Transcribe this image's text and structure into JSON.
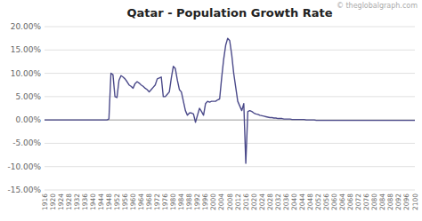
{
  "chart_data": {
    "type": "line",
    "title": "Qatar - Population Growth Rate",
    "annotations": [
      "© theglobalgraph.com"
    ],
    "color": "#4B4A8A",
    "grid": true,
    "xlim": [
      1916,
      2100
    ],
    "xticks": [
      1916,
      1920,
      1924,
      1928,
      1932,
      1936,
      1940,
      1944,
      1948,
      1952,
      1956,
      1960,
      1964,
      1968,
      1972,
      1976,
      1980,
      1984,
      1988,
      1992,
      1996,
      2000,
      2004,
      2008,
      2012,
      2016,
      2020,
      2024,
      2028,
      2032,
      2036,
      2040,
      2044,
      2048,
      2052,
      2056,
      2060,
      2064,
      2068,
      2072,
      2076,
      2080,
      2084,
      2088,
      2092,
      2096,
      2100
    ],
    "ylim": [
      -0.15,
      0.2
    ],
    "yticks": [
      {
        "value": -0.15,
        "label": "-15.00%"
      },
      {
        "value": -0.1,
        "label": "-10.00%"
      },
      {
        "value": -0.05,
        "label": "-5.00%"
      },
      {
        "value": 0,
        "label": "0.00%"
      },
      {
        "value": 0.05,
        "label": "5.00%"
      },
      {
        "value": 0.1,
        "label": "10.00%"
      },
      {
        "value": 0.15,
        "label": "15.00%"
      },
      {
        "value": 0.2,
        "label": "20.00%"
      }
    ],
    "x": [
      1916,
      1917,
      1918,
      1919,
      1920,
      1921,
      1922,
      1923,
      1924,
      1925,
      1926,
      1927,
      1928,
      1929,
      1930,
      1931,
      1932,
      1933,
      1934,
      1935,
      1936,
      1937,
      1938,
      1939,
      1940,
      1941,
      1942,
      1943,
      1944,
      1945,
      1946,
      1947,
      1948,
      1949,
      1950,
      1951,
      1952,
      1953,
      1954,
      1955,
      1956,
      1957,
      1958,
      1959,
      1960,
      1961,
      1962,
      1963,
      1964,
      1965,
      1966,
      1967,
      1968,
      1969,
      1970,
      1971,
      1972,
      1973,
      1974,
      1975,
      1976,
      1977,
      1978,
      1979,
      1980,
      1981,
      1982,
      1983,
      1984,
      1985,
      1986,
      1987,
      1988,
      1989,
      1990,
      1991,
      1992,
      1993,
      1994,
      1995,
      1996,
      1997,
      1998,
      1999,
      2000,
      2001,
      2002,
      2003,
      2004,
      2005,
      2006,
      2007,
      2008,
      2009,
      2010,
      2011,
      2012,
      2013,
      2014,
      2015,
      2016,
      2017,
      2018,
      2019,
      2020,
      2021,
      2022,
      2023,
      2024,
      2025,
      2026,
      2027,
      2028,
      2029,
      2030,
      2031,
      2032,
      2033,
      2034,
      2035,
      2036,
      2037,
      2038,
      2039,
      2040,
      2041,
      2042,
      2043,
      2044,
      2045,
      2046,
      2047,
      2048,
      2049,
      2050,
      2051,
      2052,
      2053,
      2054,
      2055,
      2056,
      2057,
      2058,
      2059,
      2060,
      2061,
      2062,
      2063,
      2064,
      2065,
      2066,
      2067,
      2068,
      2069,
      2070,
      2071,
      2072,
      2073,
      2074,
      2075,
      2076,
      2077,
      2078,
      2079,
      2080,
      2081,
      2082,
      2083,
      2084,
      2085,
      2086,
      2087,
      2088,
      2089,
      2090,
      2091,
      2092,
      2093,
      2094,
      2095,
      2096,
      2097,
      2098,
      2099,
      2100
    ],
    "values": [
      0,
      0,
      0,
      0,
      0,
      0,
      0,
      0,
      0,
      0,
      0,
      0,
      0,
      0,
      0,
      0,
      0,
      0,
      0,
      0,
      0,
      0,
      0,
      0,
      0,
      0,
      0,
      0,
      0,
      0,
      0,
      0,
      0.002,
      0.1,
      0.097,
      0.05,
      0.048,
      0.085,
      0.095,
      0.092,
      0.088,
      0.082,
      0.075,
      0.072,
      0.068,
      0.078,
      0.082,
      0.079,
      0.075,
      0.072,
      0.068,
      0.065,
      0.06,
      0.065,
      0.07,
      0.075,
      0.088,
      0.09,
      0.092,
      0.05,
      0.05,
      0.055,
      0.06,
      0.09,
      0.115,
      0.11,
      0.085,
      0.065,
      0.06,
      0.04,
      0.02,
      0.01,
      0.015,
      0.015,
      0.013,
      -0.005,
      0.01,
      0.025,
      0.018,
      0.01,
      0.035,
      0.04,
      0.038,
      0.04,
      0.04,
      0.04,
      0.043,
      0.045,
      0.09,
      0.13,
      0.16,
      0.175,
      0.17,
      0.14,
      0.1,
      0.07,
      0.04,
      0.03,
      0.02,
      0.035,
      -0.093,
      0.018,
      0.02,
      0.018,
      0.015,
      0.013,
      0.012,
      0.01,
      0.009,
      0.008,
      0.007,
      0.006,
      0.005,
      0.005,
      0.004,
      0.004,
      0.003,
      0.003,
      0.003,
      0.002,
      0.002,
      0.002,
      0.002,
      0.001,
      0.001,
      0.001,
      0.001,
      0.001,
      0.001,
      0.001,
      0,
      0,
      0,
      0,
      0,
      -0.001,
      -0.001,
      -0.001,
      -0.001,
      -0.001,
      -0.001,
      -0.001,
      -0.001,
      -0.001,
      -0.001,
      -0.001,
      -0.001,
      -0.001,
      -0.001,
      -0.001,
      -0.001,
      -0.001,
      -0.001,
      -0.001,
      -0.001,
      -0.001,
      -0.001,
      -0.001,
      -0.001,
      -0.001,
      -0.001,
      -0.001,
      -0.001,
      -0.001,
      -0.001,
      -0.001,
      -0.001,
      -0.001,
      -0.001,
      -0.001,
      -0.001,
      -0.001,
      -0.001,
      -0.001,
      -0.001,
      -0.001,
      -0.001,
      -0.001,
      -0.001,
      -0.001,
      -0.001,
      -0.001,
      -0.001,
      -0.001,
      -0.001
    ]
  }
}
